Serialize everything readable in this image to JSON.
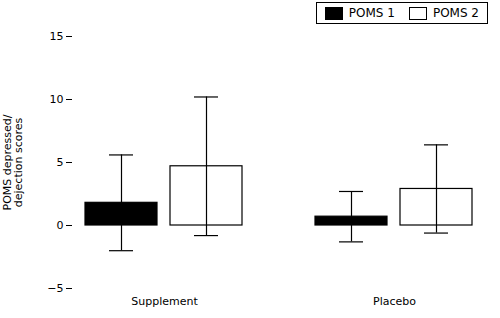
{
  "chart_data": {
    "type": "bar",
    "categories": [
      "Supplement",
      "Placebo"
    ],
    "series": [
      {
        "name": "POMS 1",
        "color": "black",
        "values": [
          1.8,
          0.7
        ],
        "errors": [
          3.8,
          2.0
        ]
      },
      {
        "name": "POMS 2",
        "color": "white",
        "values": [
          4.7,
          2.9
        ],
        "errors": [
          5.5,
          3.5
        ]
      }
    ],
    "ylabel": "POMS depressed/\ndejection scores",
    "ylim": [
      -5,
      15
    ],
    "yticks": [
      -5,
      0,
      5,
      10,
      15
    ],
    "grid": false,
    "legend": "upper right"
  }
}
